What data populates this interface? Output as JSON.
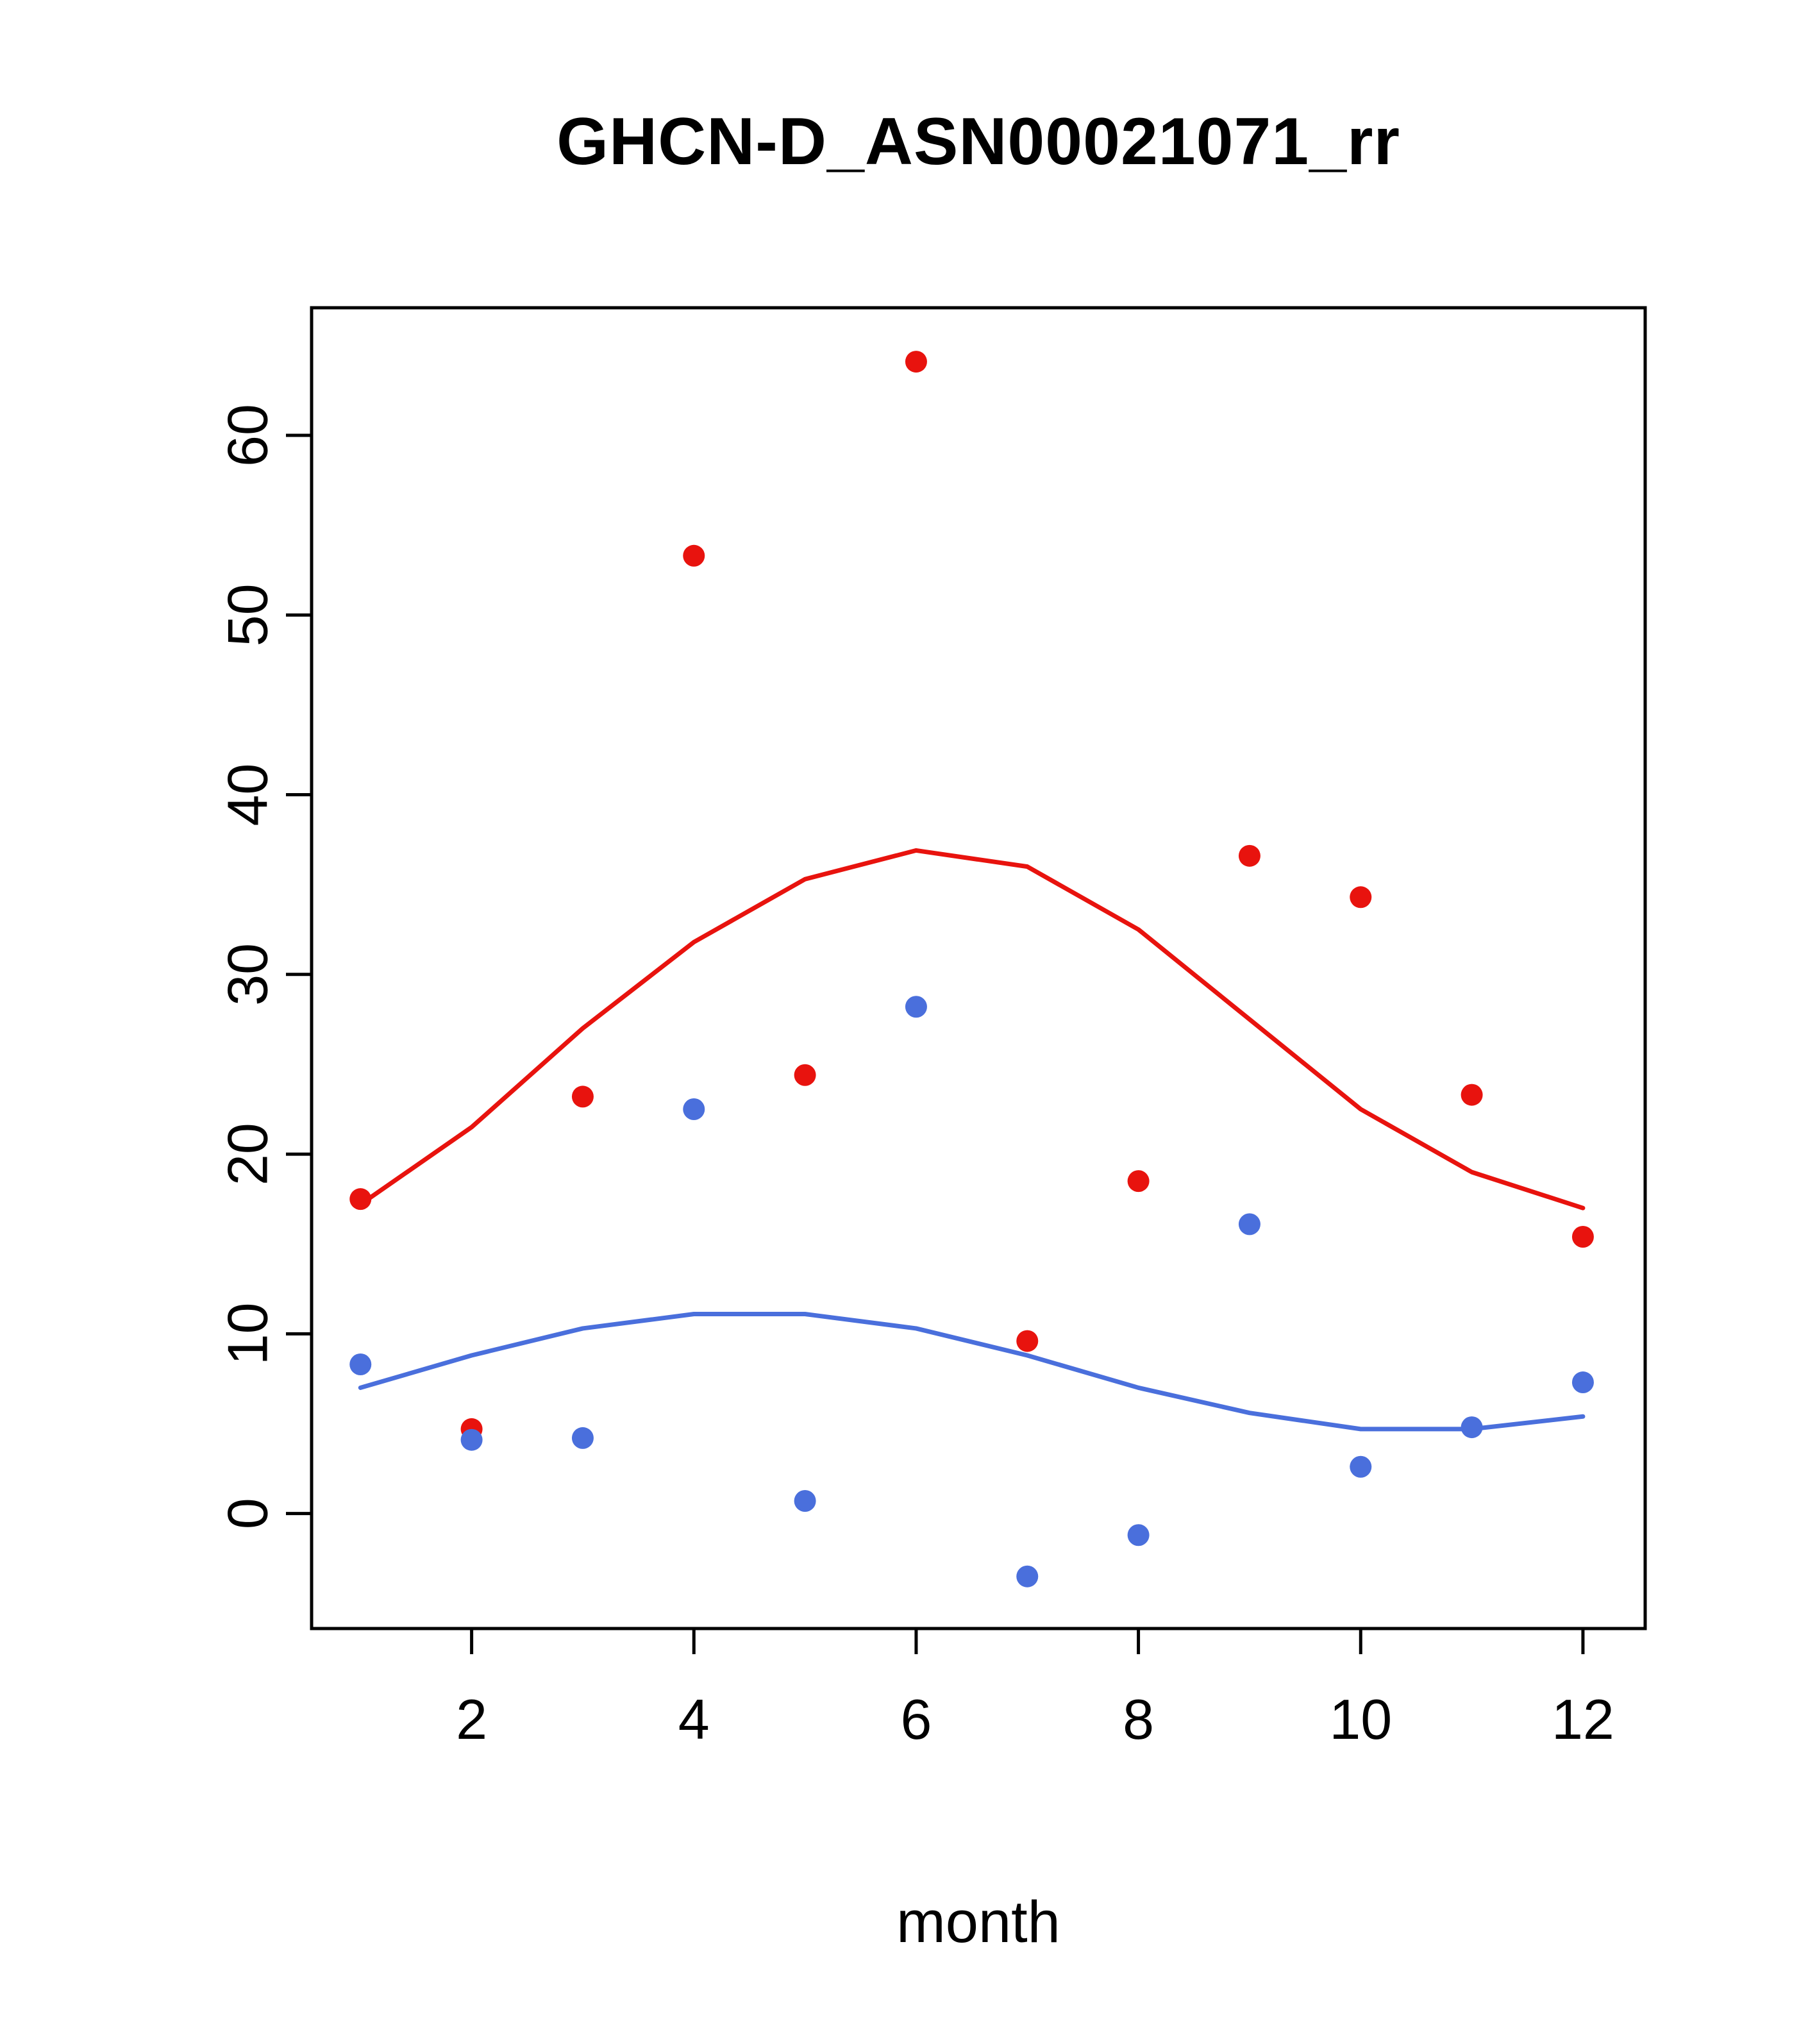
{
  "title": "GHCN-D_ASN00021071_rr",
  "chart_data": {
    "type": "scatter",
    "title": "GHCN-D_ASN00021071_rr",
    "xlabel": "month",
    "ylabel": "",
    "x": [
      1,
      2,
      3,
      4,
      5,
      6,
      7,
      8,
      9,
      10,
      11,
      12
    ],
    "xticks": [
      2,
      4,
      6,
      8,
      10,
      12
    ],
    "yticks": [
      0,
      10,
      20,
      30,
      40,
      50,
      60
    ],
    "xlim": [
      0.56,
      12.56
    ],
    "ylim": [
      -6.4,
      67.1
    ],
    "grid": false,
    "legend": "none",
    "colors": {
      "red": "#e8130e",
      "blue": "#4a6fdc"
    },
    "series": [
      {
        "name": "red-points",
        "kind": "points",
        "color": "#e8130e",
        "values": [
          17.5,
          4.7,
          23.2,
          53.3,
          24.4,
          64.1,
          9.6,
          18.5,
          36.6,
          34.3,
          23.3,
          15.4
        ]
      },
      {
        "name": "red-smooth-line",
        "kind": "line",
        "color": "#e8130e",
        "values": [
          17.2,
          21.5,
          27.0,
          31.8,
          35.3,
          36.9,
          36.0,
          32.5,
          27.5,
          22.5,
          19.0,
          17.0
        ]
      },
      {
        "name": "blue-points",
        "kind": "points",
        "color": "#4a6fdc",
        "values": [
          8.3,
          4.1,
          4.2,
          22.5,
          0.7,
          28.2,
          -3.5,
          -1.2,
          16.1,
          2.6,
          4.8,
          7.3
        ]
      },
      {
        "name": "blue-smooth-line",
        "kind": "line",
        "color": "#4a6fdc",
        "values": [
          7.0,
          8.8,
          10.3,
          11.1,
          11.1,
          10.3,
          8.8,
          7.0,
          5.6,
          4.7,
          4.7,
          5.4
        ]
      }
    ]
  }
}
